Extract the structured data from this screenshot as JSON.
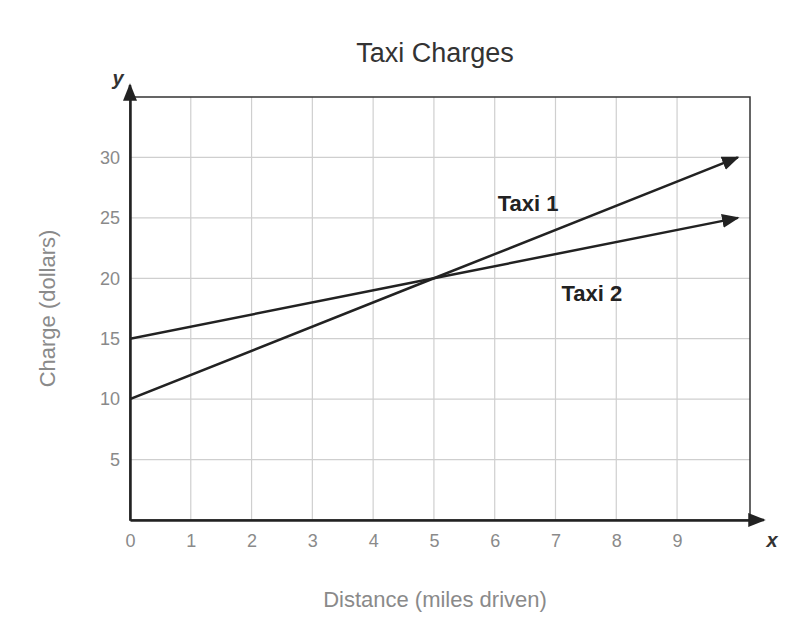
{
  "chart_data": {
    "type": "line",
    "title": "Taxi Charges",
    "x_label": "Distance (miles driven)",
    "y_label": "Charge (dollars)",
    "x_axis_symbol": "x",
    "y_axis_symbol": "y",
    "x": [
      0,
      5,
      10
    ],
    "series": [
      {
        "name": "Taxi 1",
        "color": "#222222",
        "values": [
          10,
          20,
          30
        ]
      },
      {
        "name": "Taxi 2",
        "color": "#222222",
        "values": [
          15,
          20,
          25
        ]
      }
    ],
    "xlim": [
      0,
      10.2
    ],
    "xticks": [
      0,
      1,
      2,
      3,
      4,
      5,
      6,
      7,
      8,
      9
    ],
    "ylim": [
      0,
      35
    ],
    "yticks": [
      5,
      10,
      15,
      20,
      25,
      30
    ],
    "grid": true
  }
}
